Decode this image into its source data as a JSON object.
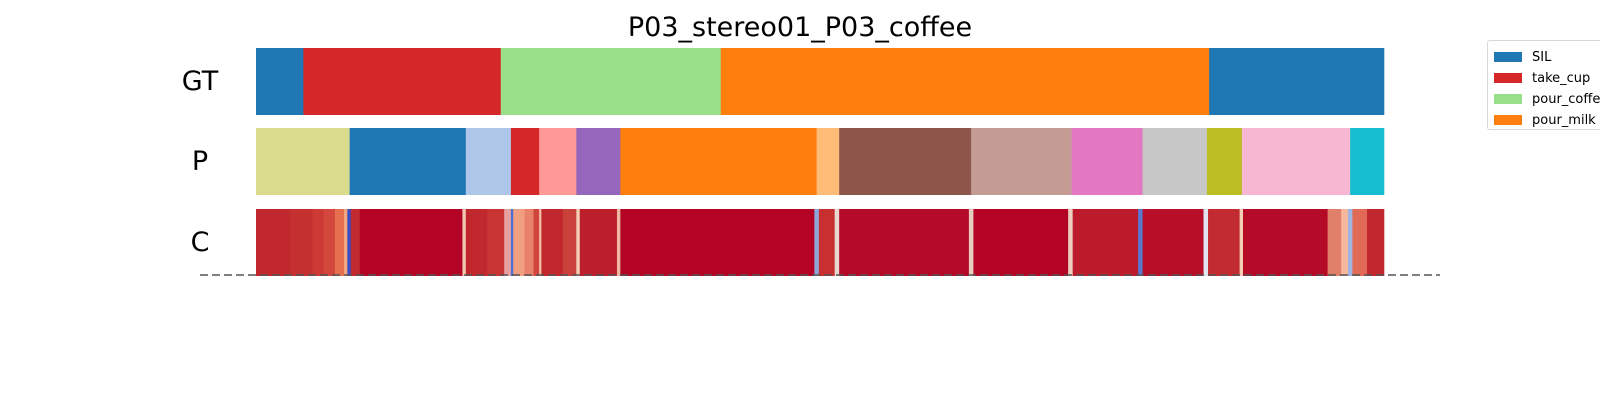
{
  "chart_data": {
    "type": "segmentation",
    "title": "P03_stereo01_P03_coffee",
    "rows": [
      {
        "label": "GT",
        "kind": "segments",
        "segments": [
          {
            "start": 0.0,
            "end": 0.042,
            "color": "#1f77b4"
          },
          {
            "start": 0.042,
            "end": 0.217,
            "color": "#d62728"
          },
          {
            "start": 0.217,
            "end": 0.412,
            "color": "#98df8a"
          },
          {
            "start": 0.412,
            "end": 0.845,
            "color": "#ff7f0e"
          },
          {
            "start": 0.845,
            "end": 1.0,
            "color": "#1f77b4"
          }
        ]
      },
      {
        "label": "P",
        "kind": "segments",
        "segments": [
          {
            "start": 0.0,
            "end": 0.083,
            "color": "#dbdb8d"
          },
          {
            "start": 0.083,
            "end": 0.186,
            "color": "#1f77b4"
          },
          {
            "start": 0.186,
            "end": 0.226,
            "color": "#aec7e8"
          },
          {
            "start": 0.226,
            "end": 0.251,
            "color": "#d62728"
          },
          {
            "start": 0.251,
            "end": 0.284,
            "color": "#ff9896"
          },
          {
            "start": 0.284,
            "end": 0.323,
            "color": "#9467bd"
          },
          {
            "start": 0.323,
            "end": 0.497,
            "color": "#ff7f0e"
          },
          {
            "start": 0.497,
            "end": 0.517,
            "color": "#ffbb78"
          },
          {
            "start": 0.517,
            "end": 0.634,
            "color": "#8c564b"
          },
          {
            "start": 0.634,
            "end": 0.723,
            "color": "#c49c94"
          },
          {
            "start": 0.723,
            "end": 0.786,
            "color": "#e377c2"
          },
          {
            "start": 0.786,
            "end": 0.843,
            "color": "#c7c7c7"
          },
          {
            "start": 0.843,
            "end": 0.874,
            "color": "#bcbd22"
          },
          {
            "start": 0.874,
            "end": 0.97,
            "color": "#f7b6d2"
          },
          {
            "start": 0.97,
            "end": 1.0,
            "color": "#17becf"
          }
        ]
      },
      {
        "label": "C",
        "kind": "confidence",
        "base_color": "#b40426",
        "stripes": [
          {
            "start": 0.0,
            "end": 0.03,
            "color": "#c0282d"
          },
          {
            "start": 0.03,
            "end": 0.05,
            "color": "#c42f30"
          },
          {
            "start": 0.05,
            "end": 0.06,
            "color": "#cc3a36"
          },
          {
            "start": 0.06,
            "end": 0.07,
            "color": "#d4473d"
          },
          {
            "start": 0.07,
            "end": 0.078,
            "color": "#e4704f"
          },
          {
            "start": 0.078,
            "end": 0.081,
            "color": "#f4a582"
          },
          {
            "start": 0.081,
            "end": 0.084,
            "color": "#3b4cc0"
          },
          {
            "start": 0.084,
            "end": 0.092,
            "color": "#c12b2f"
          },
          {
            "start": 0.092,
            "end": 0.183,
            "color": "#b40426"
          },
          {
            "start": 0.183,
            "end": 0.186,
            "color": "#f0c8b0"
          },
          {
            "start": 0.186,
            "end": 0.205,
            "color": "#c0282d"
          },
          {
            "start": 0.205,
            "end": 0.22,
            "color": "#c73634"
          },
          {
            "start": 0.22,
            "end": 0.226,
            "color": "#e6a0a0"
          },
          {
            "start": 0.226,
            "end": 0.228,
            "color": "#4b6fd6"
          },
          {
            "start": 0.228,
            "end": 0.238,
            "color": "#f0a080"
          },
          {
            "start": 0.238,
            "end": 0.246,
            "color": "#e8826a"
          },
          {
            "start": 0.246,
            "end": 0.251,
            "color": "#d0463c"
          },
          {
            "start": 0.251,
            "end": 0.253,
            "color": "#f2c0a8"
          },
          {
            "start": 0.253,
            "end": 0.272,
            "color": "#c0282d"
          },
          {
            "start": 0.272,
            "end": 0.284,
            "color": "#c9413a"
          },
          {
            "start": 0.284,
            "end": 0.287,
            "color": "#f3d0b4"
          },
          {
            "start": 0.287,
            "end": 0.32,
            "color": "#bd1e2c"
          },
          {
            "start": 0.32,
            "end": 0.323,
            "color": "#ecb8a4"
          },
          {
            "start": 0.323,
            "end": 0.495,
            "color": "#b40426"
          },
          {
            "start": 0.495,
            "end": 0.499,
            "color": "#8fa6d8"
          },
          {
            "start": 0.499,
            "end": 0.513,
            "color": "#c72f31"
          },
          {
            "start": 0.513,
            "end": 0.517,
            "color": "#e9d8cf"
          },
          {
            "start": 0.517,
            "end": 0.632,
            "color": "#b50a28"
          },
          {
            "start": 0.632,
            "end": 0.636,
            "color": "#e6cdbf"
          },
          {
            "start": 0.636,
            "end": 0.72,
            "color": "#b40426"
          },
          {
            "start": 0.72,
            "end": 0.724,
            "color": "#ecd0c0"
          },
          {
            "start": 0.724,
            "end": 0.782,
            "color": "#bc1b2c"
          },
          {
            "start": 0.782,
            "end": 0.786,
            "color": "#5a78d0"
          },
          {
            "start": 0.786,
            "end": 0.84,
            "color": "#b80f29"
          },
          {
            "start": 0.84,
            "end": 0.844,
            "color": "#dfe4ee"
          },
          {
            "start": 0.844,
            "end": 0.872,
            "color": "#c22c30"
          },
          {
            "start": 0.872,
            "end": 0.875,
            "color": "#f4cdb4"
          },
          {
            "start": 0.875,
            "end": 0.95,
            "color": "#b50a28"
          },
          {
            "start": 0.95,
            "end": 0.962,
            "color": "#e0806a"
          },
          {
            "start": 0.962,
            "end": 0.968,
            "color": "#f7b89c"
          },
          {
            "start": 0.968,
            "end": 0.972,
            "color": "#9fb4e0"
          },
          {
            "start": 0.972,
            "end": 0.985,
            "color": "#e06a55"
          },
          {
            "start": 0.985,
            "end": 1.0,
            "color": "#c0282d"
          }
        ]
      }
    ],
    "legend": {
      "placement": "top-right",
      "entries": [
        {
          "label": "SIL",
          "color": "#1f77b4"
        },
        {
          "label": "take_cup",
          "color": "#d62728"
        },
        {
          "label": "pour_coffee",
          "color": "#98df8a"
        },
        {
          "label": "pour_milk",
          "color": "#ff7f0e"
        }
      ]
    },
    "baseline": "dashed"
  }
}
